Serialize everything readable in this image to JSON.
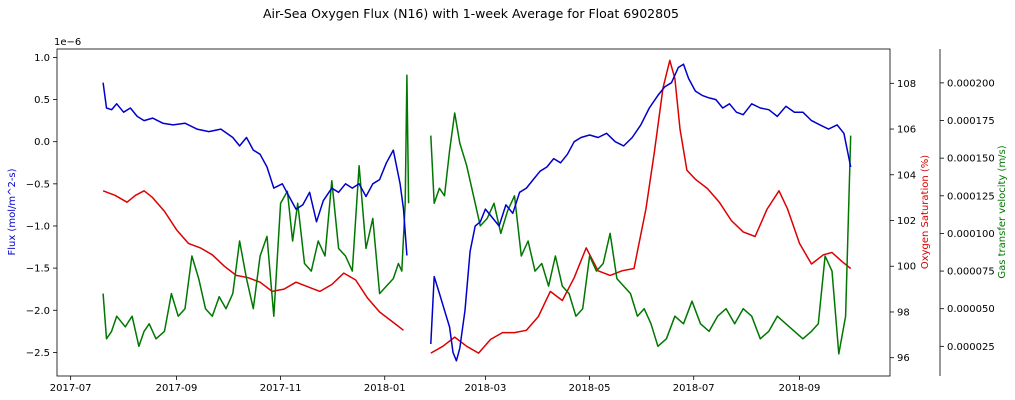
{
  "chart_data": {
    "type": "line",
    "title": "Air-Sea Oxygen Flux (N16) with 1-week Average for Float 6902805",
    "x_ticks": [
      "2017-07",
      "2017-09",
      "2017-11",
      "2018-01",
      "2018-03",
      "2018-05",
      "2018-07",
      "2018-09"
    ],
    "x_range": [
      "2017-06-23",
      "2018-10-24"
    ],
    "grid": false,
    "legend": "none",
    "axes": {
      "flux": {
        "label": "Flux (mol/m^2-s)",
        "offset_text": "1e−6",
        "color": "#0000cc",
        "ylim": [
          -2.78,
          1.1
        ],
        "ticks": [
          "−2.5",
          "−2.0",
          "−1.5",
          "−1.0",
          "−0.5",
          "0.0",
          "0.5",
          "1.0"
        ],
        "tick_values": [
          -2.5,
          -2.0,
          -1.5,
          -1.0,
          -0.5,
          0.0,
          0.5,
          1.0
        ]
      },
      "saturation": {
        "label": "Oxygen Saturation (%)",
        "color": "#dd0000",
        "ylim": [
          95.2,
          109.5
        ],
        "ticks": [
          "96",
          "98",
          "100",
          "102",
          "104",
          "106",
          "108"
        ],
        "tick_values": [
          96,
          98,
          100,
          102,
          104,
          106,
          108
        ]
      },
      "gas_transfer": {
        "label": "Gas transfer velocity (m/s)",
        "color": "#007700",
        "ylim": [
          5.3e-06,
          0.0002225
        ],
        "ticks": [
          "0.000025",
          "0.000050",
          "0.000075",
          "0.000100",
          "0.000125",
          "0.000150",
          "0.000175",
          "0.000200"
        ],
        "tick_values": [
          2.5e-05,
          5e-05,
          7.5e-05,
          0.0001,
          0.000125,
          0.00015,
          0.000175,
          0.0002
        ]
      }
    },
    "series": [
      {
        "axis": "flux",
        "color": "#0000cc",
        "segments": [
          {
            "x": [
              "2017-07-20",
              "2017-07-22",
              "2017-07-25",
              "2017-07-28",
              "2017-08-01",
              "2017-08-05",
              "2017-08-09",
              "2017-08-13",
              "2017-08-18",
              "2017-08-24",
              "2017-08-30",
              "2017-09-06",
              "2017-09-13",
              "2017-09-20",
              "2017-09-27",
              "2017-10-04",
              "2017-10-08",
              "2017-10-12",
              "2017-10-16",
              "2017-10-20",
              "2017-10-24",
              "2017-10-28",
              "2017-11-02",
              "2017-11-06",
              "2017-11-10",
              "2017-11-14",
              "2017-11-18",
              "2017-11-22",
              "2017-11-26",
              "2017-12-01",
              "2017-12-05",
              "2017-12-09",
              "2017-12-13",
              "2017-12-17",
              "2017-12-21",
              "2017-12-25",
              "2017-12-29",
              "2018-01-02",
              "2018-01-06",
              "2018-01-10",
              "2018-01-12",
              "2018-01-14"
            ],
            "y": [
              0.7,
              0.4,
              0.38,
              0.45,
              0.35,
              0.4,
              0.3,
              0.25,
              0.28,
              0.22,
              0.2,
              0.22,
              0.15,
              0.12,
              0.15,
              0.05,
              -0.05,
              0.05,
              -0.1,
              -0.15,
              -0.3,
              -0.55,
              -0.5,
              -0.65,
              -0.8,
              -0.75,
              -0.6,
              -0.95,
              -0.7,
              -0.55,
              -0.6,
              -0.5,
              -0.55,
              -0.5,
              -0.65,
              -0.5,
              -0.45,
              -0.25,
              -0.1,
              -0.5,
              -0.8,
              -1.35
            ]
          },
          {
            "x": [
              "2018-01-28",
              "2018-01-30",
              "2018-02-02",
              "2018-02-05",
              "2018-02-08",
              "2018-02-10",
              "2018-02-12",
              "2018-02-14",
              "2018-02-17",
              "2018-02-20",
              "2018-02-23",
              "2018-02-26",
              "2018-03-01",
              "2018-03-05",
              "2018-03-09",
              "2018-03-13",
              "2018-03-17",
              "2018-03-21",
              "2018-03-25",
              "2018-03-29",
              "2018-04-02",
              "2018-04-06",
              "2018-04-10",
              "2018-04-14",
              "2018-04-18",
              "2018-04-22",
              "2018-04-26",
              "2018-05-01",
              "2018-05-06",
              "2018-05-11",
              "2018-05-16",
              "2018-05-21",
              "2018-05-26",
              "2018-05-31",
              "2018-06-05",
              "2018-06-10",
              "2018-06-14",
              "2018-06-18",
              "2018-06-22",
              "2018-06-25",
              "2018-06-28",
              "2018-07-02",
              "2018-07-06",
              "2018-07-10",
              "2018-07-14",
              "2018-07-18",
              "2018-07-22",
              "2018-07-26",
              "2018-07-30",
              "2018-08-04",
              "2018-08-09",
              "2018-08-14",
              "2018-08-19",
              "2018-08-24",
              "2018-08-29",
              "2018-09-03",
              "2018-09-08",
              "2018-09-13",
              "2018-09-18",
              "2018-09-23",
              "2018-09-27",
              "2018-09-29",
              "2018-10-01"
            ],
            "y": [
              -2.4,
              -1.6,
              -1.8,
              -2.0,
              -2.2,
              -2.5,
              -2.6,
              -2.45,
              -2.0,
              -1.3,
              -1.0,
              -0.95,
              -0.8,
              -0.9,
              -1.0,
              -0.75,
              -0.85,
              -0.6,
              -0.55,
              -0.45,
              -0.35,
              -0.3,
              -0.2,
              -0.25,
              -0.15,
              0.0,
              0.05,
              0.08,
              0.05,
              0.1,
              0.0,
              -0.05,
              0.05,
              0.2,
              0.4,
              0.55,
              0.65,
              0.7,
              0.88,
              0.92,
              0.75,
              0.6,
              0.55,
              0.52,
              0.5,
              0.4,
              0.45,
              0.35,
              0.32,
              0.45,
              0.4,
              0.38,
              0.3,
              0.42,
              0.35,
              0.35,
              0.25,
              0.2,
              0.15,
              0.2,
              0.1,
              -0.1,
              -0.3
            ]
          }
        ]
      },
      {
        "axis": "saturation",
        "color": "#dd0000",
        "segments": [
          {
            "x": [
              "2017-07-20",
              "2017-07-27",
              "2017-08-03",
              "2017-08-08",
              "2017-08-13",
              "2017-08-18",
              "2017-08-25",
              "2017-09-01",
              "2017-09-08",
              "2017-09-15",
              "2017-09-22",
              "2017-09-29",
              "2017-10-06",
              "2017-10-13",
              "2017-10-20",
              "2017-10-27",
              "2017-11-03",
              "2017-11-10",
              "2017-11-17",
              "2017-11-24",
              "2017-12-01",
              "2017-12-08",
              "2017-12-15",
              "2017-12-22",
              "2017-12-29",
              "2018-01-05",
              "2018-01-12"
            ],
            "y": [
              103.3,
              103.1,
              102.8,
              103.1,
              103.3,
              103.0,
              102.4,
              101.6,
              101.0,
              100.8,
              100.5,
              100.0,
              99.6,
              99.5,
              99.3,
              98.9,
              99.0,
              99.3,
              99.1,
              98.9,
              99.2,
              99.7,
              99.4,
              98.6,
              98.0,
              97.6,
              97.2
            ]
          },
          {
            "x": [
              "2018-01-28",
              "2018-02-04",
              "2018-02-11",
              "2018-02-18",
              "2018-02-25",
              "2018-03-04",
              "2018-03-11",
              "2018-03-18",
              "2018-03-25",
              "2018-04-01",
              "2018-04-08",
              "2018-04-15",
              "2018-04-22",
              "2018-04-29",
              "2018-05-06",
              "2018-05-13",
              "2018-05-20",
              "2018-05-27",
              "2018-06-03",
              "2018-06-08",
              "2018-06-13",
              "2018-06-17",
              "2018-06-20",
              "2018-06-23",
              "2018-06-27",
              "2018-07-02",
              "2018-07-09",
              "2018-07-16",
              "2018-07-23",
              "2018-07-30",
              "2018-08-06",
              "2018-08-13",
              "2018-08-20",
              "2018-08-25",
              "2018-09-01",
              "2018-09-08",
              "2018-09-15",
              "2018-09-20",
              "2018-09-26",
              "2018-10-01"
            ],
            "y": [
              96.2,
              96.5,
              96.9,
              96.5,
              96.2,
              96.8,
              97.1,
              97.1,
              97.2,
              97.8,
              98.9,
              98.5,
              99.5,
              100.8,
              99.8,
              99.6,
              99.8,
              99.9,
              102.5,
              105.0,
              107.8,
              109.0,
              108.2,
              106.0,
              104.2,
              103.8,
              103.4,
              102.8,
              102.0,
              101.5,
              101.3,
              102.5,
              103.3,
              102.5,
              101.0,
              100.1,
              100.5,
              100.6,
              100.2,
              99.9
            ]
          }
        ]
      },
      {
        "axis": "gas_transfer",
        "color": "#007700",
        "segments": [
          {
            "x": [
              "2017-07-20",
              "2017-07-22",
              "2017-07-25",
              "2017-07-28",
              "2017-08-02",
              "2017-08-06",
              "2017-08-10",
              "2017-08-13",
              "2017-08-16",
              "2017-08-20",
              "2017-08-25",
              "2017-08-29",
              "2017-09-02",
              "2017-09-06",
              "2017-09-10",
              "2017-09-14",
              "2017-09-18",
              "2017-09-22",
              "2017-09-26",
              "2017-09-30",
              "2017-10-04",
              "2017-10-08",
              "2017-10-12",
              "2017-10-16",
              "2017-10-20",
              "2017-10-24",
              "2017-10-28",
              "2017-11-01",
              "2017-11-05",
              "2017-11-08",
              "2017-11-11",
              "2017-11-15",
              "2017-11-19",
              "2017-11-23",
              "2017-11-27",
              "2017-12-01",
              "2017-12-05",
              "2017-12-09",
              "2017-12-13",
              "2017-12-17",
              "2017-12-21",
              "2017-12-25",
              "2017-12-29",
              "2018-01-02",
              "2018-01-06",
              "2018-01-09",
              "2018-01-11",
              "2018-01-13",
              "2018-01-14",
              "2018-01-15"
            ],
            "y": [
              6e-05,
              3e-05,
              3.5e-05,
              4.5e-05,
              3.8e-05,
              4.5e-05,
              2.5e-05,
              3.5e-05,
              4e-05,
              3e-05,
              3.5e-05,
              6e-05,
              4.5e-05,
              5e-05,
              8.5e-05,
              7e-05,
              5e-05,
              4.5e-05,
              5.8e-05,
              5e-05,
              6e-05,
              9.5e-05,
              7e-05,
              5e-05,
              8.5e-05,
              9.8e-05,
              4.5e-05,
              0.00012,
              0.000128,
              9.5e-05,
              0.00012,
              8e-05,
              7.5e-05,
              9.5e-05,
              8.5e-05,
              0.000135,
              9e-05,
              8.5e-05,
              7.5e-05,
              0.000145,
              9e-05,
              0.00011,
              6e-05,
              6.5e-05,
              7e-05,
              8e-05,
              7.5e-05,
              0.00012,
              0.000205,
              0.00012
            ]
          },
          {
            "x": [
              "2018-01-28",
              "2018-01-30",
              "2018-02-02",
              "2018-02-05",
              "2018-02-08",
              "2018-02-11",
              "2018-02-14",
              "2018-02-18",
              "2018-02-22",
              "2018-02-26",
              "2018-03-02",
              "2018-03-06",
              "2018-03-10",
              "2018-03-14",
              "2018-03-18",
              "2018-03-22",
              "2018-03-26",
              "2018-03-30",
              "2018-04-03",
              "2018-04-07",
              "2018-04-11",
              "2018-04-15",
              "2018-04-19",
              "2018-04-23",
              "2018-04-27",
              "2018-05-01",
              "2018-05-05",
              "2018-05-09",
              "2018-05-13",
              "2018-05-17",
              "2018-05-21",
              "2018-05-25",
              "2018-05-29",
              "2018-06-02",
              "2018-06-06",
              "2018-06-10",
              "2018-06-15",
              "2018-06-20",
              "2018-06-25",
              "2018-06-30",
              "2018-07-05",
              "2018-07-10",
              "2018-07-15",
              "2018-07-20",
              "2018-07-25",
              "2018-07-30",
              "2018-08-04",
              "2018-08-09",
              "2018-08-14",
              "2018-08-19",
              "2018-08-24",
              "2018-08-29",
              "2018-09-03",
              "2018-09-08",
              "2018-09-12",
              "2018-09-16",
              "2018-09-20",
              "2018-09-24",
              "2018-09-28",
              "2018-10-01"
            ],
            "y": [
              0.000165,
              0.00012,
              0.00013,
              0.000125,
              0.000155,
              0.00018,
              0.00016,
              0.000145,
              0.000125,
              0.000105,
              0.00011,
              0.00012,
              0.0001,
              0.000115,
              0.000125,
              8.5e-05,
              9.5e-05,
              7.5e-05,
              8e-05,
              6.5e-05,
              8.5e-05,
              6.5e-05,
              6e-05,
              4.5e-05,
              5e-05,
              8.5e-05,
              7.5e-05,
              8e-05,
              0.0001,
              7e-05,
              6.5e-05,
              6e-05,
              4.5e-05,
              5e-05,
              4e-05,
              2.5e-05,
              3e-05,
              4.5e-05,
              4e-05,
              5.5e-05,
              4e-05,
              3.5e-05,
              4.5e-05,
              5e-05,
              4e-05,
              5e-05,
              4.5e-05,
              3e-05,
              3.5e-05,
              4.5e-05,
              4e-05,
              3.5e-05,
              3e-05,
              3.5e-05,
              4e-05,
              8.5e-05,
              7.5e-05,
              2e-05,
              4.5e-05,
              0.000165
            ]
          }
        ]
      }
    ]
  }
}
